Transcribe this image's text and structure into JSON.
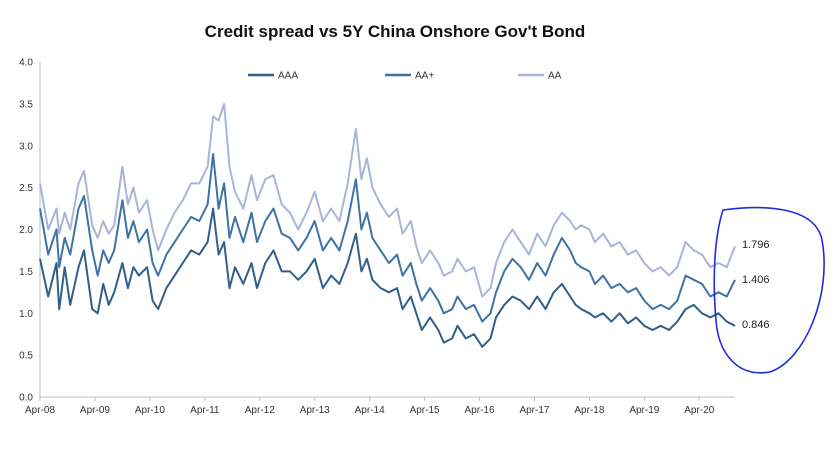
{
  "chart_data": {
    "type": "line",
    "title": "Credit spread vs 5Y China Onshore Gov't Bond",
    "xlabel": "",
    "ylabel": "",
    "ylim": [
      0.0,
      4.0
    ],
    "y_ticks": [
      "0.0",
      "0.5",
      "1.0",
      "1.5",
      "2.0",
      "2.5",
      "3.0",
      "3.5",
      "4.0"
    ],
    "x_tick_labels": [
      "Apr-08",
      "Apr-09",
      "Apr-10",
      "Apr-11",
      "Apr-12",
      "Apr-13",
      "Apr-14",
      "Apr-15",
      "Apr-16",
      "Apr-17",
      "Apr-18",
      "Apr-19",
      "Apr-20"
    ],
    "x_range_years": [
      2008.25,
      2020.9
    ],
    "grid": false,
    "legend_position": "top",
    "annotation": "hand-drawn circle around latest values",
    "series": [
      {
        "name": "AAA",
        "color": "#2f5f8a",
        "end_label": "0.846",
        "points": [
          [
            2008.25,
            1.65
          ],
          [
            2008.4,
            1.2
          ],
          [
            2008.55,
            1.6
          ],
          [
            2008.6,
            1.05
          ],
          [
            2008.7,
            1.55
          ],
          [
            2008.8,
            1.1
          ],
          [
            2008.95,
            1.55
          ],
          [
            2009.05,
            1.75
          ],
          [
            2009.2,
            1.05
          ],
          [
            2009.3,
            1.0
          ],
          [
            2009.4,
            1.35
          ],
          [
            2009.5,
            1.1
          ],
          [
            2009.6,
            1.25
          ],
          [
            2009.75,
            1.6
          ],
          [
            2009.85,
            1.3
          ],
          [
            2009.95,
            1.55
          ],
          [
            2010.05,
            1.45
          ],
          [
            2010.2,
            1.55
          ],
          [
            2010.3,
            1.15
          ],
          [
            2010.4,
            1.05
          ],
          [
            2010.55,
            1.3
          ],
          [
            2010.7,
            1.45
          ],
          [
            2010.85,
            1.6
          ],
          [
            2011.0,
            1.75
          ],
          [
            2011.15,
            1.7
          ],
          [
            2011.3,
            1.85
          ],
          [
            2011.4,
            2.25
          ],
          [
            2011.5,
            1.7
          ],
          [
            2011.6,
            1.85
          ],
          [
            2011.7,
            1.3
          ],
          [
            2011.8,
            1.55
          ],
          [
            2011.95,
            1.35
          ],
          [
            2012.1,
            1.6
          ],
          [
            2012.2,
            1.3
          ],
          [
            2012.35,
            1.6
          ],
          [
            2012.5,
            1.75
          ],
          [
            2012.65,
            1.5
          ],
          [
            2012.8,
            1.5
          ],
          [
            2012.95,
            1.4
          ],
          [
            2013.1,
            1.5
          ],
          [
            2013.25,
            1.65
          ],
          [
            2013.4,
            1.3
          ],
          [
            2013.55,
            1.45
          ],
          [
            2013.7,
            1.35
          ],
          [
            2013.85,
            1.6
          ],
          [
            2014.0,
            1.95
          ],
          [
            2014.1,
            1.5
          ],
          [
            2014.2,
            1.65
          ],
          [
            2014.3,
            1.4
          ],
          [
            2014.45,
            1.3
          ],
          [
            2014.6,
            1.25
          ],
          [
            2014.75,
            1.3
          ],
          [
            2014.85,
            1.05
          ],
          [
            2015.0,
            1.2
          ],
          [
            2015.1,
            1.0
          ],
          [
            2015.2,
            0.8
          ],
          [
            2015.35,
            0.95
          ],
          [
            2015.5,
            0.8
          ],
          [
            2015.6,
            0.65
          ],
          [
            2015.75,
            0.7
          ],
          [
            2015.85,
            0.85
          ],
          [
            2016.0,
            0.7
          ],
          [
            2016.15,
            0.75
          ],
          [
            2016.3,
            0.6
          ],
          [
            2016.45,
            0.7
          ],
          [
            2016.55,
            0.95
          ],
          [
            2016.7,
            1.1
          ],
          [
            2016.85,
            1.2
          ],
          [
            2017.0,
            1.15
          ],
          [
            2017.15,
            1.05
          ],
          [
            2017.3,
            1.2
          ],
          [
            2017.45,
            1.05
          ],
          [
            2017.6,
            1.25
          ],
          [
            2017.75,
            1.35
          ],
          [
            2017.9,
            1.2
          ],
          [
            2018.0,
            1.1
          ],
          [
            2018.1,
            1.05
          ],
          [
            2018.25,
            1.0
          ],
          [
            2018.35,
            0.95
          ],
          [
            2018.5,
            1.0
          ],
          [
            2018.65,
            0.9
          ],
          [
            2018.8,
            1.0
          ],
          [
            2018.95,
            0.88
          ],
          [
            2019.1,
            0.95
          ],
          [
            2019.25,
            0.85
          ],
          [
            2019.4,
            0.8
          ],
          [
            2019.55,
            0.85
          ],
          [
            2019.7,
            0.8
          ],
          [
            2019.85,
            0.9
          ],
          [
            2020.0,
            1.05
          ],
          [
            2020.15,
            1.1
          ],
          [
            2020.3,
            1.0
          ],
          [
            2020.45,
            0.95
          ],
          [
            2020.6,
            1.0
          ],
          [
            2020.75,
            0.9
          ],
          [
            2020.9,
            0.85
          ]
        ]
      },
      {
        "name": "AA+",
        "color": "#3d73a6",
        "end_label": "1.406",
        "points": [
          [
            2008.25,
            2.25
          ],
          [
            2008.4,
            1.7
          ],
          [
            2008.55,
            2.0
          ],
          [
            2008.6,
            1.55
          ],
          [
            2008.7,
            1.9
          ],
          [
            2008.8,
            1.7
          ],
          [
            2008.95,
            2.25
          ],
          [
            2009.05,
            2.4
          ],
          [
            2009.2,
            1.75
          ],
          [
            2009.3,
            1.45
          ],
          [
            2009.4,
            1.75
          ],
          [
            2009.5,
            1.6
          ],
          [
            2009.6,
            1.75
          ],
          [
            2009.75,
            2.35
          ],
          [
            2009.85,
            1.9
          ],
          [
            2009.95,
            2.1
          ],
          [
            2010.05,
            1.85
          ],
          [
            2010.2,
            2.0
          ],
          [
            2010.3,
            1.6
          ],
          [
            2010.4,
            1.45
          ],
          [
            2010.55,
            1.7
          ],
          [
            2010.7,
            1.85
          ],
          [
            2010.85,
            2.0
          ],
          [
            2011.0,
            2.15
          ],
          [
            2011.15,
            2.1
          ],
          [
            2011.3,
            2.3
          ],
          [
            2011.4,
            2.9
          ],
          [
            2011.5,
            2.25
          ],
          [
            2011.6,
            2.55
          ],
          [
            2011.7,
            1.9
          ],
          [
            2011.8,
            2.15
          ],
          [
            2011.95,
            1.85
          ],
          [
            2012.1,
            2.2
          ],
          [
            2012.2,
            1.85
          ],
          [
            2012.35,
            2.1
          ],
          [
            2012.5,
            2.25
          ],
          [
            2012.65,
            1.95
          ],
          [
            2012.8,
            1.9
          ],
          [
            2012.95,
            1.75
          ],
          [
            2013.1,
            1.9
          ],
          [
            2013.25,
            2.1
          ],
          [
            2013.4,
            1.75
          ],
          [
            2013.55,
            1.9
          ],
          [
            2013.7,
            1.75
          ],
          [
            2013.85,
            2.1
          ],
          [
            2014.0,
            2.6
          ],
          [
            2014.1,
            2.0
          ],
          [
            2014.2,
            2.2
          ],
          [
            2014.3,
            1.9
          ],
          [
            2014.45,
            1.75
          ],
          [
            2014.6,
            1.6
          ],
          [
            2014.75,
            1.7
          ],
          [
            2014.85,
            1.45
          ],
          [
            2015.0,
            1.6
          ],
          [
            2015.1,
            1.35
          ],
          [
            2015.2,
            1.15
          ],
          [
            2015.35,
            1.3
          ],
          [
            2015.5,
            1.15
          ],
          [
            2015.6,
            1.0
          ],
          [
            2015.75,
            1.05
          ],
          [
            2015.85,
            1.2
          ],
          [
            2016.0,
            1.05
          ],
          [
            2016.15,
            1.1
          ],
          [
            2016.3,
            0.9
          ],
          [
            2016.45,
            1.0
          ],
          [
            2016.55,
            1.25
          ],
          [
            2016.7,
            1.5
          ],
          [
            2016.85,
            1.65
          ],
          [
            2017.0,
            1.55
          ],
          [
            2017.15,
            1.4
          ],
          [
            2017.3,
            1.6
          ],
          [
            2017.45,
            1.45
          ],
          [
            2017.6,
            1.7
          ],
          [
            2017.75,
            1.9
          ],
          [
            2017.9,
            1.75
          ],
          [
            2018.0,
            1.6
          ],
          [
            2018.1,
            1.55
          ],
          [
            2018.25,
            1.5
          ],
          [
            2018.35,
            1.35
          ],
          [
            2018.5,
            1.45
          ],
          [
            2018.65,
            1.3
          ],
          [
            2018.8,
            1.35
          ],
          [
            2018.95,
            1.25
          ],
          [
            2019.1,
            1.3
          ],
          [
            2019.25,
            1.15
          ],
          [
            2019.4,
            1.05
          ],
          [
            2019.55,
            1.1
          ],
          [
            2019.7,
            1.05
          ],
          [
            2019.85,
            1.15
          ],
          [
            2020.0,
            1.45
          ],
          [
            2020.15,
            1.4
          ],
          [
            2020.3,
            1.35
          ],
          [
            2020.45,
            1.2
          ],
          [
            2020.6,
            1.25
          ],
          [
            2020.75,
            1.2
          ],
          [
            2020.9,
            1.4
          ]
        ]
      },
      {
        "name": "AA",
        "color": "#a9b4d8",
        "end_label": "1.796",
        "points": [
          [
            2008.25,
            2.55
          ],
          [
            2008.4,
            2.0
          ],
          [
            2008.55,
            2.25
          ],
          [
            2008.6,
            1.95
          ],
          [
            2008.7,
            2.2
          ],
          [
            2008.8,
            2.0
          ],
          [
            2008.95,
            2.55
          ],
          [
            2009.05,
            2.7
          ],
          [
            2009.2,
            2.05
          ],
          [
            2009.3,
            1.9
          ],
          [
            2009.4,
            2.1
          ],
          [
            2009.5,
            1.95
          ],
          [
            2009.6,
            2.05
          ],
          [
            2009.75,
            2.75
          ],
          [
            2009.85,
            2.3
          ],
          [
            2009.95,
            2.5
          ],
          [
            2010.05,
            2.2
          ],
          [
            2010.2,
            2.35
          ],
          [
            2010.3,
            2.0
          ],
          [
            2010.4,
            1.75
          ],
          [
            2010.55,
            2.0
          ],
          [
            2010.7,
            2.2
          ],
          [
            2010.85,
            2.35
          ],
          [
            2011.0,
            2.55
          ],
          [
            2011.15,
            2.55
          ],
          [
            2011.3,
            2.75
          ],
          [
            2011.4,
            3.35
          ],
          [
            2011.5,
            3.3
          ],
          [
            2011.6,
            3.5
          ],
          [
            2011.7,
            2.75
          ],
          [
            2011.8,
            2.45
          ],
          [
            2011.95,
            2.25
          ],
          [
            2012.1,
            2.65
          ],
          [
            2012.2,
            2.35
          ],
          [
            2012.35,
            2.6
          ],
          [
            2012.5,
            2.65
          ],
          [
            2012.65,
            2.3
          ],
          [
            2012.8,
            2.2
          ],
          [
            2012.95,
            2.0
          ],
          [
            2013.1,
            2.2
          ],
          [
            2013.25,
            2.45
          ],
          [
            2013.4,
            2.1
          ],
          [
            2013.55,
            2.25
          ],
          [
            2013.7,
            2.1
          ],
          [
            2013.85,
            2.55
          ],
          [
            2014.0,
            3.2
          ],
          [
            2014.1,
            2.6
          ],
          [
            2014.2,
            2.85
          ],
          [
            2014.3,
            2.5
          ],
          [
            2014.45,
            2.3
          ],
          [
            2014.6,
            2.15
          ],
          [
            2014.75,
            2.25
          ],
          [
            2014.85,
            1.95
          ],
          [
            2015.0,
            2.1
          ],
          [
            2015.1,
            1.8
          ],
          [
            2015.2,
            1.6
          ],
          [
            2015.35,
            1.75
          ],
          [
            2015.5,
            1.6
          ],
          [
            2015.6,
            1.45
          ],
          [
            2015.75,
            1.5
          ],
          [
            2015.85,
            1.65
          ],
          [
            2016.0,
            1.5
          ],
          [
            2016.15,
            1.55
          ],
          [
            2016.3,
            1.2
          ],
          [
            2016.45,
            1.3
          ],
          [
            2016.55,
            1.6
          ],
          [
            2016.7,
            1.85
          ],
          [
            2016.85,
            2.0
          ],
          [
            2017.0,
            1.85
          ],
          [
            2017.15,
            1.7
          ],
          [
            2017.3,
            1.95
          ],
          [
            2017.45,
            1.8
          ],
          [
            2017.6,
            2.05
          ],
          [
            2017.75,
            2.2
          ],
          [
            2017.9,
            2.1
          ],
          [
            2018.0,
            2.0
          ],
          [
            2018.1,
            2.05
          ],
          [
            2018.25,
            2.0
          ],
          [
            2018.35,
            1.85
          ],
          [
            2018.5,
            1.95
          ],
          [
            2018.65,
            1.8
          ],
          [
            2018.8,
            1.85
          ],
          [
            2018.95,
            1.7
          ],
          [
            2019.1,
            1.75
          ],
          [
            2019.25,
            1.6
          ],
          [
            2019.4,
            1.5
          ],
          [
            2019.55,
            1.55
          ],
          [
            2019.7,
            1.45
          ],
          [
            2019.85,
            1.55
          ],
          [
            2020.0,
            1.85
          ],
          [
            2020.15,
            1.75
          ],
          [
            2020.3,
            1.7
          ],
          [
            2020.45,
            1.55
          ],
          [
            2020.6,
            1.6
          ],
          [
            2020.75,
            1.55
          ],
          [
            2020.9,
            1.8
          ]
        ]
      }
    ]
  }
}
